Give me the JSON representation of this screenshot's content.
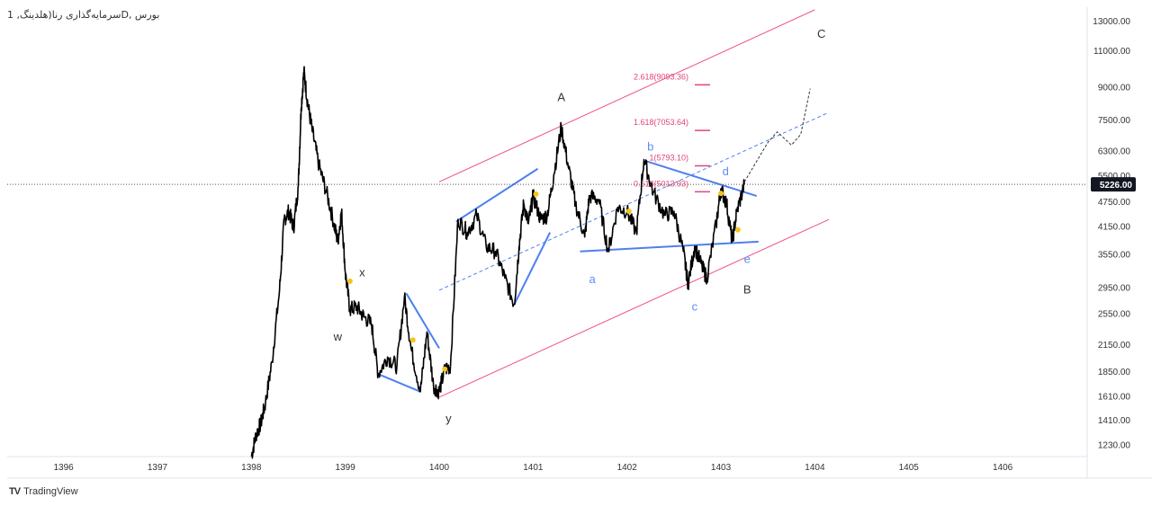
{
  "header": {
    "symbol_title": "بورس ,Dسرمایه‌گذاری رنا(هلدینگ, 1"
  },
  "footer": {
    "brand_logo": "TV",
    "brand_name": "TradingView"
  },
  "chart_data": {
    "type": "line",
    "yscale": "log",
    "ylim": [
      1150,
      14000
    ],
    "xlim": [
      1395.4,
      1406.9
    ],
    "x_ticks": [
      "1396",
      "1397",
      "1398",
      "1399",
      "1400",
      "1401",
      "1402",
      "1403",
      "1404",
      "1405",
      "1406"
    ],
    "y_ticks": [
      "13000.00",
      "11000.00",
      "9000.00",
      "7500.00",
      "6300.00",
      "5500.00",
      "4750.00",
      "4150.00",
      "3550.00",
      "2950.00",
      "2550.00",
      "2150.00",
      "1850.00",
      "1610.00",
      "1410.00",
      "1230.00"
    ],
    "last_price": 5226.0,
    "last_price_label": "5226.00",
    "price_series": [
      [
        1398.0,
        1150
      ],
      [
        1398.05,
        1300
      ],
      [
        1398.1,
        1380
      ],
      [
        1398.15,
        1550
      ],
      [
        1398.22,
        1950
      ],
      [
        1398.3,
        2900
      ],
      [
        1398.35,
        4300
      ],
      [
        1398.4,
        4500
      ],
      [
        1398.45,
        4100
      ],
      [
        1398.5,
        5200
      ],
      [
        1398.53,
        8000
      ],
      [
        1398.56,
        9800
      ],
      [
        1398.6,
        8200
      ],
      [
        1398.65,
        7000
      ],
      [
        1398.72,
        5800
      ],
      [
        1398.8,
        5000
      ],
      [
        1398.88,
        4200
      ],
      [
        1398.92,
        3800
      ],
      [
        1398.96,
        4500
      ],
      [
        1399.0,
        3200
      ],
      [
        1399.05,
        2600
      ],
      [
        1399.12,
        2650
      ],
      [
        1399.2,
        2500
      ],
      [
        1399.28,
        2400
      ],
      [
        1399.35,
        1820
      ],
      [
        1399.45,
        2000
      ],
      [
        1399.55,
        1900
      ],
      [
        1399.63,
        2800
      ],
      [
        1399.7,
        2100
      ],
      [
        1399.8,
        1650
      ],
      [
        1399.87,
        2300
      ],
      [
        1399.94,
        1700
      ],
      [
        1400.0,
        1650
      ],
      [
        1400.06,
        1870
      ],
      [
        1400.12,
        1900
      ],
      [
        1400.2,
        4300
      ],
      [
        1400.3,
        4000
      ],
      [
        1400.4,
        4400
      ],
      [
        1400.5,
        3700
      ],
      [
        1400.6,
        3600
      ],
      [
        1400.7,
        3100
      ],
      [
        1400.8,
        2680
      ],
      [
        1400.85,
        3700
      ],
      [
        1400.9,
        4700
      ],
      [
        1400.95,
        4200
      ],
      [
        1401.0,
        4900
      ],
      [
        1401.08,
        4300
      ],
      [
        1401.15,
        4400
      ],
      [
        1401.22,
        5500
      ],
      [
        1401.3,
        7200
      ],
      [
        1401.38,
        5700
      ],
      [
        1401.45,
        4700
      ],
      [
        1401.55,
        3900
      ],
      [
        1401.6,
        4900
      ],
      [
        1401.7,
        4800
      ],
      [
        1401.8,
        3600
      ],
      [
        1401.9,
        4600
      ],
      [
        1402.0,
        4500
      ],
      [
        1402.1,
        4000
      ],
      [
        1402.18,
        6000
      ],
      [
        1402.28,
        5000
      ],
      [
        1402.4,
        4400
      ],
      [
        1402.5,
        4500
      ],
      [
        1402.6,
        3600
      ],
      [
        1402.65,
        3000
      ],
      [
        1402.72,
        3700
      ],
      [
        1402.8,
        3300
      ],
      [
        1402.85,
        3100
      ],
      [
        1402.95,
        4200
      ],
      [
        1403.0,
        5100
      ],
      [
        1403.06,
        4700
      ],
      [
        1403.12,
        3800
      ],
      [
        1403.17,
        4500
      ],
      [
        1403.25,
        5226
      ]
    ],
    "channel_upper": [
      [
        1400.0,
        5300
      ],
      [
        1404.0,
        13800
      ]
    ],
    "channel_lower": [
      [
        1400.0,
        1600
      ],
      [
        1404.15,
        4300
      ]
    ],
    "dashed_midline": [
      [
        1400.0,
        2900
      ],
      [
        1404.15,
        7800
      ]
    ],
    "blue_lines": [
      [
        [
          1399.35,
          1820
        ],
        [
          1399.8,
          1650
        ]
      ],
      [
        [
          1399.65,
          2850
        ],
        [
          1400.0,
          2100
        ]
      ],
      [
        [
          1400.18,
          4250
        ],
        [
          1401.05,
          5700
        ]
      ],
      [
        [
          1400.8,
          2680
        ],
        [
          1401.18,
          4000
        ]
      ],
      [
        [
          1401.5,
          3600
        ],
        [
          1403.4,
          3800
        ]
      ],
      [
        [
          1402.2,
          5950
        ],
        [
          1403.38,
          4900
        ]
      ]
    ],
    "projection": [
      [
        1403.25,
        5300
      ],
      [
        1403.5,
        6600
      ],
      [
        1403.6,
        7000
      ],
      [
        1403.75,
        6500
      ],
      [
        1403.85,
        6900
      ],
      [
        1403.95,
        8900
      ]
    ],
    "fib_levels": [
      {
        "label": "2.618(9093.36)",
        "value": 9093.36
      },
      {
        "label": "1.618(7053.64)",
        "value": 7053.64
      },
      {
        "label": "1(5793.10)",
        "value": 5793.1
      },
      {
        "label": "0.618(5013.93)",
        "value": 5013.93
      }
    ],
    "wave_labels": [
      {
        "text": "A",
        "x": 1401.3,
        "y": 8300,
        "color": "#333333"
      },
      {
        "text": "B",
        "x": 1403.28,
        "y": 2850,
        "color": "#333333"
      },
      {
        "text": "C",
        "x": 1404.07,
        "y": 11800,
        "color": "#333333"
      },
      {
        "text": "w",
        "x": 1398.92,
        "y": 2190,
        "color": "#333333"
      },
      {
        "text": "x",
        "x": 1399.18,
        "y": 3130,
        "color": "#333333"
      },
      {
        "text": "y",
        "x": 1400.1,
        "y": 1390,
        "color": "#333333"
      },
      {
        "text": "a",
        "x": 1401.63,
        "y": 3020,
        "color": "#5b8def"
      },
      {
        "text": "b",
        "x": 1402.25,
        "y": 6300,
        "color": "#5b8def"
      },
      {
        "text": "c",
        "x": 1402.72,
        "y": 2590,
        "color": "#5b8def"
      },
      {
        "text": "d",
        "x": 1403.05,
        "y": 5500,
        "color": "#5b8def"
      },
      {
        "text": "e",
        "x": 1403.28,
        "y": 3380,
        "color": "#5b8def"
      }
    ],
    "pivot_points": [
      [
        1399.05,
        3050
      ],
      [
        1399.72,
        2200
      ],
      [
        1400.06,
        1870
      ],
      [
        1401.03,
        4950
      ],
      [
        1402.02,
        4500
      ],
      [
        1403.0,
        4970
      ],
      [
        1403.18,
        4060
      ]
    ],
    "colors": {
      "price": "#000000",
      "channel": "#f0528a",
      "blue": "#4f7ff0",
      "fib": "#e0457b",
      "pivot": "#f5c518",
      "grid": "#e0e3eb",
      "axis_text": "#333333"
    }
  }
}
